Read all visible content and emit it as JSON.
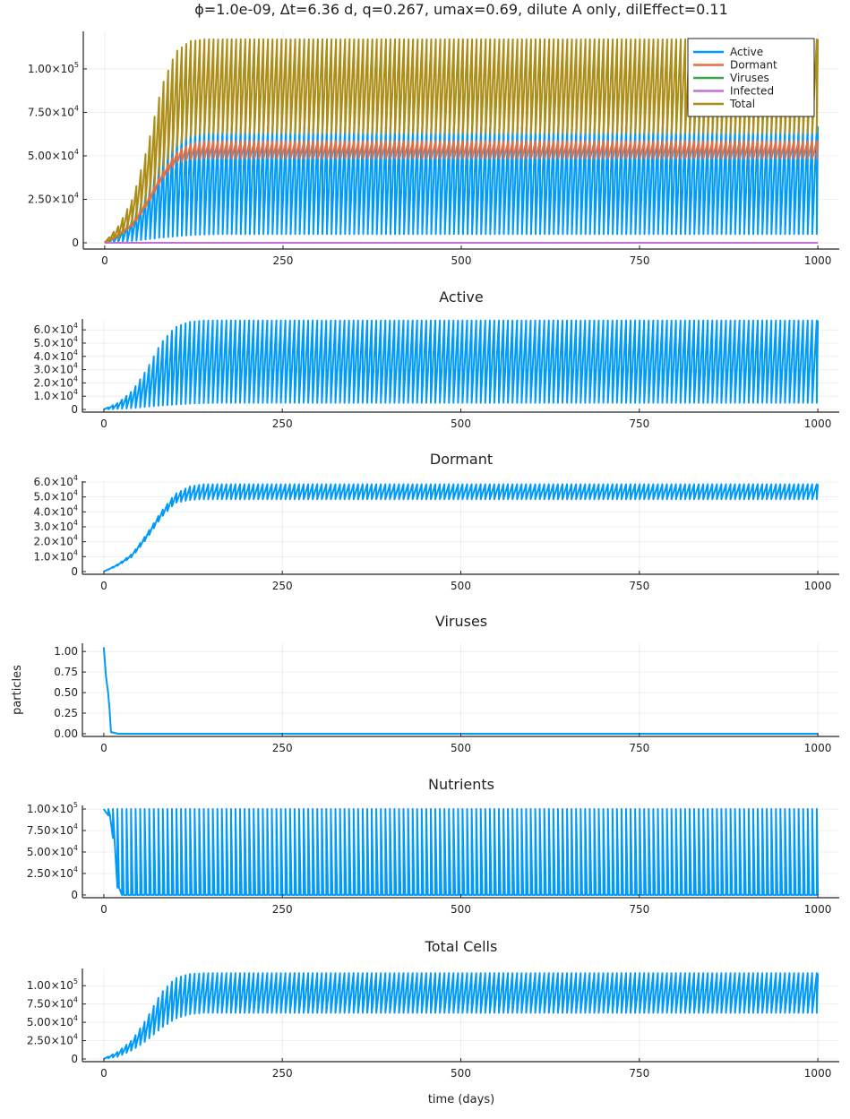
{
  "chart_data": {
    "title": "ϕ=1.0e-09, Δt=6.36 d, q=0.267, umax=0.69, dilute A only, dilEffect=0.11",
    "xlabel": "time (days)",
    "cycle_period_days": 6.36,
    "x_ticks": [
      0,
      250,
      500,
      750,
      1000
    ],
    "xlim": [
      -30,
      1030
    ],
    "colors": {
      "Active": "#009AFA",
      "Dormant": "#E26F46",
      "Viruses": "#3EA44E",
      "Infected": "#C271D2",
      "Total": "#AC8D18",
      "Nutrients": "#009AFA"
    },
    "series_models": {
      "Active": {
        "shape": "rise",
        "peak": [
          [
            0,
            0
          ],
          [
            20,
            5000
          ],
          [
            40,
            14000
          ],
          [
            60,
            30000
          ],
          [
            80,
            50000
          ],
          [
            100,
            62000
          ],
          [
            120,
            66000
          ],
          [
            140,
            67000
          ],
          [
            1000,
            67000
          ]
        ],
        "trough": [
          [
            0,
            0
          ],
          [
            40,
            1000
          ],
          [
            80,
            3000
          ],
          [
            120,
            4500
          ],
          [
            160,
            5000
          ],
          [
            1000,
            5000
          ]
        ]
      },
      "Dormant": {
        "shape": "rise",
        "peak": [
          [
            0,
            0
          ],
          [
            20,
            5000
          ],
          [
            40,
            12000
          ],
          [
            60,
            25000
          ],
          [
            80,
            40000
          ],
          [
            100,
            52000
          ],
          [
            120,
            57000
          ],
          [
            140,
            58500
          ],
          [
            1000,
            58500
          ]
        ],
        "trough": [
          [
            0,
            0
          ],
          [
            20,
            4000
          ],
          [
            40,
            10000
          ],
          [
            60,
            22000
          ],
          [
            80,
            36000
          ],
          [
            100,
            46000
          ],
          [
            120,
            48000
          ],
          [
            140,
            48500
          ],
          [
            1000,
            48500
          ]
        ]
      },
      "Total": {
        "shape": "rise",
        "peak": [
          [
            0,
            0
          ],
          [
            20,
            10000
          ],
          [
            40,
            26000
          ],
          [
            60,
            55000
          ],
          [
            80,
            90000
          ],
          [
            100,
            110000
          ],
          [
            120,
            116000
          ],
          [
            140,
            117000
          ],
          [
            1000,
            117000
          ]
        ],
        "trough": [
          [
            0,
            0
          ],
          [
            20,
            3000
          ],
          [
            40,
            12000
          ],
          [
            60,
            25000
          ],
          [
            80,
            42000
          ],
          [
            100,
            55000
          ],
          [
            120,
            61000
          ],
          [
            140,
            63000
          ],
          [
            1000,
            63000
          ]
        ]
      },
      "Nutrients": {
        "shape": "decay",
        "peak": [
          [
            0,
            100000
          ],
          [
            1000,
            100000
          ]
        ],
        "trough": [
          [
            0,
            97000
          ],
          [
            10,
            90000
          ],
          [
            14,
            55000
          ],
          [
            20,
            0
          ],
          [
            1000,
            0
          ]
        ]
      },
      "Viruses": {
        "shape": "points",
        "points": [
          [
            0,
            1.05
          ],
          [
            3,
            0.7
          ],
          [
            6,
            0.5
          ],
          [
            8,
            0.3
          ],
          [
            10,
            0.02
          ],
          [
            20,
            0
          ],
          [
            1000,
            0
          ]
        ]
      },
      "Infected": {
        "shape": "points",
        "points": [
          [
            0,
            0
          ],
          [
            1000,
            0
          ]
        ]
      }
    },
    "panels": [
      {
        "title": "",
        "ylabel": "",
        "ylim": [
          -3600,
          121600
        ],
        "series": [
          "Active",
          "Dormant",
          "Viruses",
          "Infected",
          "Total"
        ],
        "legend": "top-right",
        "y_ticks": [
          {
            "v": 0,
            "m": "0",
            "e": ""
          },
          {
            "v": 25000,
            "m": "2.50×10",
            "e": "4"
          },
          {
            "v": 50000,
            "m": "5.00×10",
            "e": "4"
          },
          {
            "v": 75000,
            "m": "7.50×10",
            "e": "4"
          },
          {
            "v": 100000,
            "m": "1.00×10",
            "e": "5"
          }
        ]
      },
      {
        "title": "Active",
        "ylabel": "",
        "ylim": [
          -2000,
          68200
        ],
        "series": [
          "Active"
        ],
        "y_ticks": [
          {
            "v": 0,
            "m": "0",
            "e": ""
          },
          {
            "v": 10000,
            "m": "1.0×10",
            "e": "4"
          },
          {
            "v": 20000,
            "m": "2.0×10",
            "e": "4"
          },
          {
            "v": 30000,
            "m": "3.0×10",
            "e": "4"
          },
          {
            "v": 40000,
            "m": "4.0×10",
            "e": "4"
          },
          {
            "v": 50000,
            "m": "5.0×10",
            "e": "4"
          },
          {
            "v": 60000,
            "m": "6.0×10",
            "e": "4"
          }
        ]
      },
      {
        "title": "Dormant",
        "ylabel": "",
        "ylim": [
          -1800,
          60600
        ],
        "series": [
          "Dormant"
        ],
        "single_color": true,
        "y_ticks": [
          {
            "v": 0,
            "m": "0",
            "e": ""
          },
          {
            "v": 10000,
            "m": "1.0×10",
            "e": "4"
          },
          {
            "v": 20000,
            "m": "2.0×10",
            "e": "4"
          },
          {
            "v": 30000,
            "m": "3.0×10",
            "e": "4"
          },
          {
            "v": 40000,
            "m": "4.0×10",
            "e": "4"
          },
          {
            "v": 50000,
            "m": "5.0×10",
            "e": "4"
          },
          {
            "v": 60000,
            "m": "6.0×10",
            "e": "4"
          }
        ]
      },
      {
        "title": "Viruses",
        "ylabel": "particles",
        "ylim": [
          -0.033,
          1.1
        ],
        "series": [
          "Viruses"
        ],
        "single_color": true,
        "y_ticks": [
          {
            "v": 0,
            "m": "0.00",
            "e": ""
          },
          {
            "v": 0.25,
            "m": "0.25",
            "e": ""
          },
          {
            "v": 0.5,
            "m": "0.50",
            "e": ""
          },
          {
            "v": 0.75,
            "m": "0.75",
            "e": ""
          },
          {
            "v": 1,
            "m": "1.00",
            "e": ""
          }
        ]
      },
      {
        "title": "Nutrients",
        "ylabel": "",
        "ylim": [
          -3200,
          104200
        ],
        "series": [
          "Nutrients"
        ],
        "y_ticks": [
          {
            "v": 0,
            "m": "0",
            "e": ""
          },
          {
            "v": 25000,
            "m": "2.50×10",
            "e": "4"
          },
          {
            "v": 50000,
            "m": "5.00×10",
            "e": "4"
          },
          {
            "v": 75000,
            "m": "7.50×10",
            "e": "4"
          },
          {
            "v": 100000,
            "m": "1.00×10",
            "e": "5"
          }
        ]
      },
      {
        "title": "Total Cells",
        "ylabel": "",
        "ylim": [
          -3700,
          123500
        ],
        "series": [
          "Total"
        ],
        "single_color": true,
        "xlabel": "time (days)",
        "y_ticks": [
          {
            "v": 0,
            "m": "0",
            "e": ""
          },
          {
            "v": 25000,
            "m": "2.50×10",
            "e": "4"
          },
          {
            "v": 50000,
            "m": "5.00×10",
            "e": "4"
          },
          {
            "v": 75000,
            "m": "7.50×10",
            "e": "4"
          },
          {
            "v": 100000,
            "m": "1.00×10",
            "e": "5"
          }
        ]
      }
    ]
  }
}
